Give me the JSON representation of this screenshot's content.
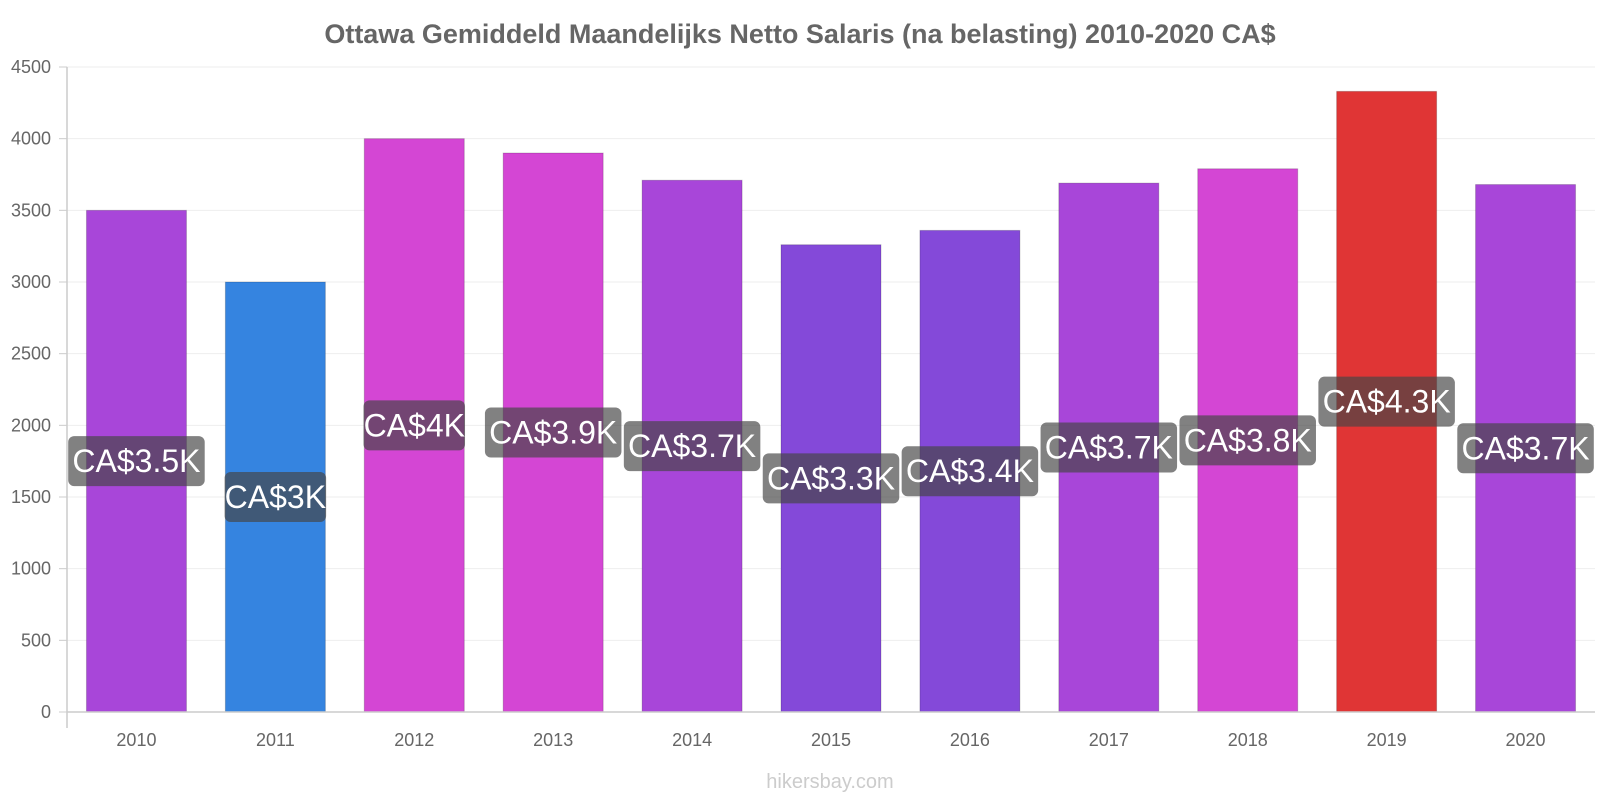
{
  "chart_data": {
    "type": "bar",
    "title": "Ottawa Gemiddeld Maandelijks Netto Salaris (na belasting) 2010-2020 CA$",
    "categories": [
      "2010",
      "2011",
      "2012",
      "2013",
      "2014",
      "2015",
      "2016",
      "2017",
      "2018",
      "2019",
      "2020"
    ],
    "values": [
      3500,
      3000,
      4000,
      3900,
      3710,
      3260,
      3360,
      3690,
      3790,
      4330,
      3680
    ],
    "data_labels": [
      "CA$3.5K",
      "CA$3K",
      "CA$4K",
      "CA$3.9K",
      "CA$3.7K",
      "CA$3.3K",
      "CA$3.4K",
      "CA$3.7K",
      "CA$3.8K",
      "CA$4.3K",
      "CA$3.7K"
    ],
    "colors": [
      "#a846d9",
      "#3584e0",
      "#d446d4",
      "#d446d4",
      "#a846d9",
      "#8449d9",
      "#8449d9",
      "#a846d9",
      "#d446d4",
      "#e03535",
      "#a846d9"
    ],
    "y_ticks": [
      "0",
      "500",
      "1000",
      "1500",
      "2000",
      "2500",
      "3000",
      "3500",
      "4000",
      "4500"
    ],
    "ylim": [
      0,
      4500
    ],
    "xlabel": "",
    "ylabel": "",
    "grid": true,
    "legend": "none"
  },
  "footer": "hikersbay.com"
}
